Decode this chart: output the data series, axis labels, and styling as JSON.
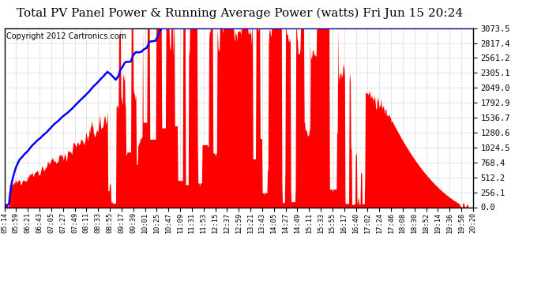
{
  "title": "Total PV Panel Power & Running Average Power (watts) Fri Jun 15 20:24",
  "copyright": "Copyright 2012 Cartronics.com",
  "y_labels": [
    3073.5,
    2817.4,
    2561.2,
    2305.1,
    2049.0,
    1792.9,
    1536.7,
    1280.6,
    1024.5,
    768.4,
    512.2,
    256.1,
    0.0
  ],
  "y_max": 3073.5,
  "y_min": 0.0,
  "x_labels": [
    "05:14",
    "05:59",
    "06:21",
    "06:43",
    "07:05",
    "07:27",
    "07:49",
    "08:11",
    "08:33",
    "08:55",
    "09:17",
    "09:39",
    "10:01",
    "10:25",
    "10:47",
    "11:09",
    "11:31",
    "11:53",
    "12:15",
    "12:37",
    "12:59",
    "13:21",
    "13:43",
    "14:05",
    "14:27",
    "14:49",
    "15:11",
    "15:33",
    "15:55",
    "16:17",
    "16:40",
    "17:02",
    "17:24",
    "17:46",
    "18:08",
    "18:30",
    "18:52",
    "19:14",
    "19:36",
    "19:58",
    "20:20"
  ],
  "background_color": "#ffffff",
  "plot_bg_color": "#ffffff",
  "grid_color": "#cccccc",
  "fill_color": "#ff0000",
  "line_color": "#0000ff",
  "border_color": "#000000",
  "title_fontsize": 11,
  "copyright_fontsize": 7
}
